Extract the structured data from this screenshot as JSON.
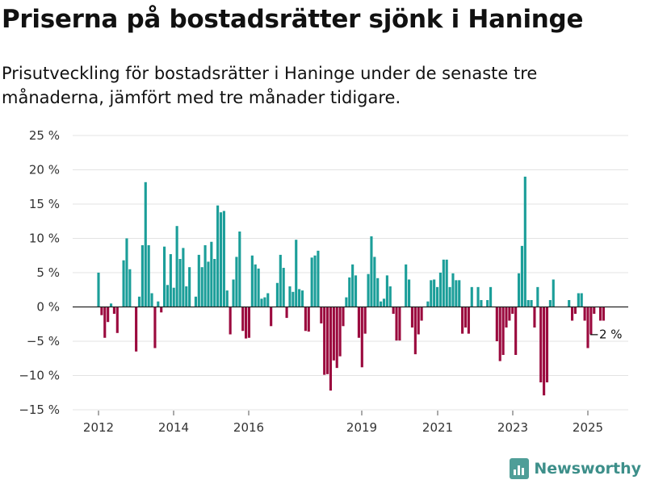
{
  "chart_data": {
    "type": "bar",
    "title": "Priserna på bostadsrätter sjönk i Haninge",
    "subtitle": "Prisutveckling för bostadsrätter i Haninge under de senaste tre månaderna, jämfört med tre månader tidigare.",
    "xlabel": "",
    "ylabel": "",
    "y_ticks": [
      "25 %",
      "20 %",
      "15 %",
      "10 %",
      "5 %",
      "0 %",
      "−5 %",
      "−10 %",
      "−15 %"
    ],
    "x_ticks": [
      "2012",
      "2014",
      "2016",
      "2019",
      "2021",
      "2023",
      "2025"
    ],
    "ylim": [
      -15,
      25
    ],
    "grid": true,
    "colors": {
      "positive": "#1b9e99",
      "negative": "#9b0a3e"
    },
    "last_label": "−2 %",
    "values": [
      5.0,
      -1.2,
      -4.5,
      -2.2,
      0.5,
      -1.0,
      -3.8,
      0.0,
      6.8,
      10.0,
      5.5,
      0.0,
      -6.5,
      1.5,
      9.0,
      18.2,
      9.0,
      2.0,
      -6.0,
      0.8,
      -0.8,
      8.8,
      3.2,
      7.7,
      2.8,
      11.8,
      7.0,
      8.6,
      3.0,
      5.8,
      0.0,
      1.5,
      7.6,
      5.8,
      9.0,
      6.6,
      9.5,
      7.0,
      14.8,
      13.8,
      14.0,
      2.4,
      -4.0,
      4.0,
      7.3,
      11.0,
      -3.5,
      -4.6,
      -4.5,
      7.5,
      6.2,
      5.6,
      1.2,
      1.4,
      2.0,
      -2.8,
      0.0,
      3.5,
      7.6,
      5.7,
      -1.6,
      3.0,
      2.2,
      9.8,
      2.6,
      2.4,
      -3.5,
      -3.6,
      7.2,
      7.5,
      8.2,
      -2.4,
      -9.9,
      -9.8,
      -12.2,
      -7.8,
      -8.9,
      -7.2,
      -2.8,
      1.4,
      4.3,
      6.2,
      4.6,
      -4.5,
      -8.8,
      -3.9,
      4.8,
      10.3,
      7.3,
      4.2,
      0.8,
      1.2,
      4.6,
      3.0,
      -1.0,
      -4.9,
      -4.9,
      0.0,
      6.2,
      4.0,
      -3.0,
      -6.9,
      -4.0,
      -2.0,
      0.0,
      0.8,
      3.9,
      4.0,
      2.9,
      5.0,
      6.9,
      6.9,
      2.9,
      4.9,
      3.9,
      3.9,
      -3.9,
      -3.0,
      -3.9,
      2.9,
      0.0,
      2.9,
      1.0,
      0.0,
      1.0,
      2.9,
      0.0,
      -5.0,
      -7.9,
      -7.0,
      -3.0,
      -2.0,
      -1.0,
      -7.0,
      4.9,
      8.9,
      19.0,
      1.0,
      1.0,
      -3.0,
      2.9,
      -11.0,
      -12.9,
      -11.0,
      1.0,
      4.0,
      0.0,
      0.0,
      0.0,
      0.0,
      1.0,
      -2.0,
      -1.0,
      2.0,
      2.0,
      -2.0,
      -6.0,
      -4.0,
      -1.0,
      0.0,
      -2.0,
      -2.0
    ]
  },
  "brand": {
    "name": "Newsworthy"
  }
}
